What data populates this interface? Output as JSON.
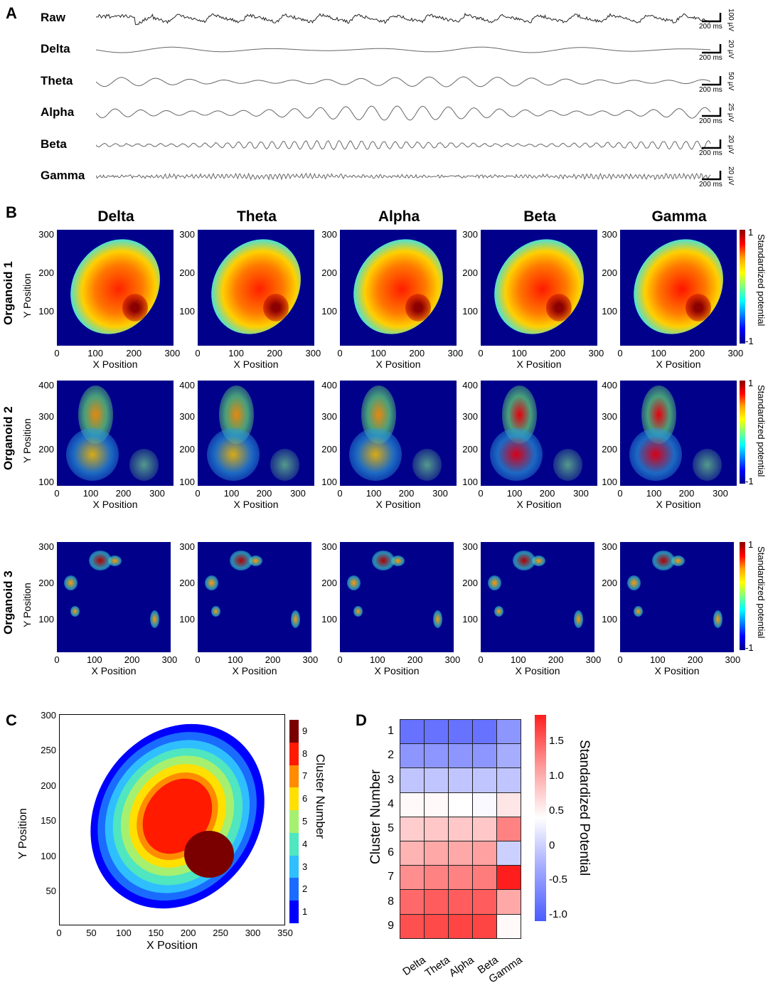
{
  "panel_a": {
    "label": "A",
    "traces": [
      {
        "name": "Raw",
        "time_scale": "200 ms",
        "amp_scale": "100 µV"
      },
      {
        "name": "Delta",
        "time_scale": "200 ms",
        "amp_scale": "20 µV"
      },
      {
        "name": "Theta",
        "time_scale": "200 ms",
        "amp_scale": "50 µV"
      },
      {
        "name": "Alpha",
        "time_scale": "200 ms",
        "amp_scale": "25 µV"
      },
      {
        "name": "Beta",
        "time_scale": "200 ms",
        "amp_scale": "20 µV"
      },
      {
        "name": "Gamma",
        "time_scale": "200 ms",
        "amp_scale": "20 µV"
      }
    ]
  },
  "panel_b": {
    "label": "B",
    "bands": [
      "Delta",
      "Theta",
      "Alpha",
      "Beta",
      "Gamma"
    ],
    "rows": [
      "Organoid 1",
      "Organoid 2",
      "Organoid 3"
    ],
    "xlabel": "X Position",
    "ylabel": "Y Position",
    "colorbar_label": "Standardized potential",
    "colorbar_max": "1",
    "colorbar_min": "-1",
    "row_xticks": [
      [
        "0",
        "100",
        "200",
        "300"
      ],
      [
        "0",
        "100",
        "200",
        "300"
      ],
      [
        "0",
        "100",
        "200",
        "300"
      ]
    ],
    "row_yticks": [
      [
        "300",
        "200",
        "100"
      ],
      [
        "400",
        "300",
        "200",
        "100"
      ],
      [
        "300",
        "200",
        "100"
      ]
    ],
    "colors": {
      "background": "#00008b",
      "hot": "#8b0000"
    }
  },
  "panel_c": {
    "label": "C",
    "xlabel": "X Position",
    "ylabel": "Y Position",
    "xticks": [
      "0",
      "50",
      "100",
      "150",
      "200",
      "250",
      "300",
      "350"
    ],
    "yticks": [
      "300",
      "250",
      "200",
      "150",
      "100",
      "50"
    ],
    "colorbar_label": "Cluster Number",
    "colorbar_ticks": [
      "9",
      "8",
      "7",
      "6",
      "5",
      "4",
      "3",
      "2",
      "1"
    ]
  },
  "panel_d": {
    "label": "D",
    "ylabel": "Cluster Number",
    "colorbar_label": "Standardized Potential",
    "colorbar_ticks": [
      "1.5",
      "1.0",
      "0.5",
      "0",
      "-0.5",
      "-1.0"
    ]
  },
  "chart_data": {
    "type": "heatmap",
    "title": "",
    "xlabel": "",
    "ylabel": "Cluster Number",
    "x_categories": [
      "Delta",
      "Theta",
      "Alpha",
      "Beta",
      "Gamma"
    ],
    "y_categories": [
      "1",
      "2",
      "3",
      "4",
      "5",
      "6",
      "7",
      "8",
      "9"
    ],
    "value_range": [
      -1.5,
      1.8
    ],
    "values": [
      [
        -1.2,
        -1.2,
        -1.2,
        -1.2,
        -0.9
      ],
      [
        -0.9,
        -0.9,
        -0.9,
        -0.9,
        -0.7
      ],
      [
        -0.5,
        -0.5,
        -0.5,
        -0.5,
        -0.5
      ],
      [
        0.05,
        0.05,
        0.0,
        -0.05,
        0.2
      ],
      [
        0.4,
        0.45,
        0.45,
        0.45,
        1.0
      ],
      [
        0.6,
        0.7,
        0.7,
        0.75,
        -0.4
      ],
      [
        0.9,
        1.0,
        1.0,
        1.05,
        1.8
      ],
      [
        1.2,
        1.3,
        1.3,
        1.3,
        0.7
      ],
      [
        1.4,
        1.45,
        1.5,
        1.5,
        0.05
      ]
    ]
  }
}
